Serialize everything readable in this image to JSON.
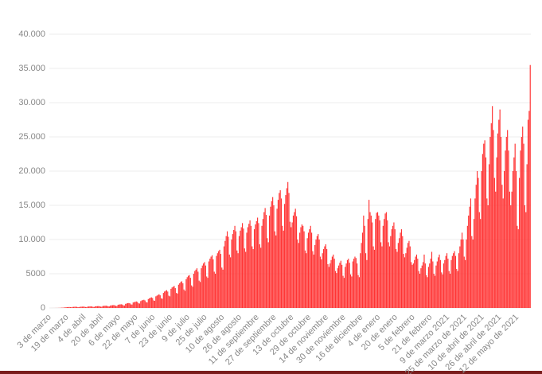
{
  "chart_data": {
    "type": "bar",
    "color": "#ff3333",
    "grid": true,
    "ylim": [
      0,
      40000
    ],
    "yticks": [
      0,
      5000,
      {
        "value": 10000,
        "label": "10.000"
      },
      {
        "value": 15000,
        "label": "15.000"
      },
      {
        "value": 20000,
        "label": "20.000"
      },
      {
        "value": 25000,
        "label": "25.000"
      },
      {
        "value": 30000,
        "label": "30.000"
      },
      {
        "value": 35000,
        "label": "35.000"
      },
      {
        "value": 40000,
        "label": "40.000"
      }
    ],
    "categories": [
      "3 de marzo",
      null,
      null,
      null,
      null,
      null,
      null,
      null,
      null,
      null,
      null,
      null,
      null,
      null,
      null,
      null,
      "19 de marzo",
      null,
      null,
      null,
      null,
      null,
      null,
      null,
      null,
      null,
      null,
      null,
      null,
      null,
      null,
      null,
      "4 de abril",
      null,
      null,
      null,
      null,
      null,
      null,
      null,
      null,
      null,
      null,
      null,
      null,
      null,
      null,
      null,
      "20 de abril",
      null,
      null,
      null,
      null,
      null,
      null,
      null,
      null,
      null,
      null,
      null,
      null,
      null,
      null,
      null,
      "6 de mayo",
      null,
      null,
      null,
      null,
      null,
      null,
      null,
      null,
      null,
      null,
      null,
      null,
      null,
      null,
      null,
      "22 de mayo",
      null,
      null,
      null,
      null,
      null,
      null,
      null,
      null,
      null,
      null,
      null,
      null,
      null,
      null,
      null,
      "7 de junio",
      null,
      null,
      null,
      null,
      null,
      null,
      null,
      null,
      null,
      null,
      null,
      null,
      null,
      null,
      null,
      "23 de junio",
      null,
      null,
      null,
      null,
      null,
      null,
      null,
      null,
      null,
      null,
      null,
      null,
      null,
      null,
      null,
      "9 de julio",
      null,
      null,
      null,
      null,
      null,
      null,
      null,
      null,
      null,
      null,
      null,
      null,
      null,
      null,
      null,
      "25 de julio",
      null,
      null,
      null,
      null,
      null,
      null,
      null,
      null,
      null,
      null,
      null,
      null,
      null,
      null,
      null,
      "10 de agosto",
      null,
      null,
      null,
      null,
      null,
      null,
      null,
      null,
      null,
      null,
      null,
      null,
      null,
      null,
      null,
      "26 de agosto",
      null,
      null,
      null,
      null,
      null,
      null,
      null,
      null,
      null,
      null,
      null,
      null,
      null,
      null,
      null,
      "11 de septiembre",
      null,
      null,
      null,
      null,
      null,
      null,
      null,
      null,
      null,
      null,
      null,
      null,
      null,
      null,
      null,
      "27 de septiembre",
      null,
      null,
      null,
      null,
      null,
      null,
      null,
      null,
      null,
      null,
      null,
      null,
      null,
      null,
      null,
      "13 de octubre",
      null,
      null,
      null,
      null,
      null,
      null,
      null,
      null,
      null,
      null,
      null,
      null,
      null,
      null,
      null,
      "29 de octubre",
      null,
      null,
      null,
      null,
      null,
      null,
      null,
      null,
      null,
      null,
      null,
      null,
      null,
      null,
      null,
      "14 de noviembre",
      null,
      null,
      null,
      null,
      null,
      null,
      null,
      null,
      null,
      null,
      null,
      null,
      null,
      null,
      null,
      "30 de noviembre",
      null,
      null,
      null,
      null,
      null,
      null,
      null,
      null,
      null,
      null,
      null,
      null,
      null,
      null,
      null,
      "16 de diciembre",
      null,
      null,
      null,
      null,
      null,
      null,
      null,
      null,
      null,
      null,
      null,
      null,
      null,
      null,
      null,
      "4 de enero",
      null,
      null,
      null,
      null,
      null,
      null,
      null,
      null,
      null,
      null,
      null,
      null,
      null,
      null,
      null,
      "20 de enero",
      null,
      null,
      null,
      null,
      null,
      null,
      null,
      null,
      null,
      null,
      null,
      null,
      null,
      null,
      null,
      "5 de febrero",
      null,
      null,
      null,
      null,
      null,
      null,
      null,
      null,
      null,
      null,
      null,
      null,
      null,
      null,
      null,
      "21 de febrero",
      null,
      null,
      null,
      null,
      null,
      null,
      null,
      null,
      null,
      null,
      null,
      null,
      null,
      null,
      null,
      "9 de marzo 2021",
      null,
      null,
      null,
      null,
      null,
      null,
      null,
      null,
      null,
      null,
      null,
      null,
      null,
      null,
      null,
      "25 de marzo de 2021",
      null,
      null,
      null,
      null,
      null,
      null,
      null,
      null,
      null,
      null,
      null,
      null,
      null,
      null,
      null,
      "10 de abril de 2021",
      null,
      null,
      null,
      null,
      null,
      null,
      null,
      null,
      null,
      null,
      null,
      null,
      null,
      null,
      null,
      "26 de abril de 2021",
      null,
      null,
      null,
      null,
      null,
      null,
      null,
      null,
      null,
      null,
      null,
      null,
      null,
      null,
      null,
      "12 de mayo de 2021",
      null,
      null,
      null,
      null,
      null,
      null,
      null,
      null,
      null,
      null,
      null,
      null
    ],
    "values": [
      0,
      1,
      1,
      2,
      3,
      5,
      8,
      10,
      15,
      20,
      30,
      40,
      50,
      60,
      80,
      100,
      120,
      130,
      140,
      120,
      100,
      150,
      160,
      170,
      180,
      160,
      120,
      110,
      170,
      180,
      190,
      200,
      180,
      140,
      130,
      200,
      210,
      220,
      230,
      210,
      160,
      150,
      240,
      250,
      260,
      270,
      250,
      190,
      180,
      290,
      300,
      320,
      330,
      300,
      230,
      220,
      350,
      380,
      400,
      420,
      390,
      300,
      280,
      460,
      500,
      520,
      540,
      500,
      380,
      360,
      600,
      650,
      700,
      720,
      680,
      520,
      500,
      800,
      850,
      900,
      950,
      880,
      680,
      650,
      1000,
      1100,
      1150,
      1200,
      1100,
      850,
      800,
      1300,
      1400,
      1500,
      1550,
      1450,
      1100,
      1050,
      1700,
      1800,
      1900,
      2000,
      1850,
      1400,
      1350,
      2200,
      2400,
      2500,
      2600,
      2400,
      1800,
      1700,
      2800,
      3000,
      3100,
      3200,
      2900,
      2200,
      2100,
      3400,
      3600,
      3800,
      3900,
      3600,
      2700,
      2500,
      4200,
      4500,
      4700,
      4800,
      4400,
      3300,
      3100,
      5000,
      5400,
      5600,
      5800,
      5300,
      4000,
      3800,
      5800,
      6200,
      6500,
      6700,
      6200,
      4600,
      4400,
      6800,
      7200,
      7500,
      7700,
      7100,
      5300,
      5000,
      7600,
      8000,
      8300,
      8500,
      7900,
      5900,
      5600,
      9000,
      9800,
      10500,
      11200,
      10400,
      7800,
      7400,
      10000,
      10800,
      11400,
      12000,
      11200,
      8400,
      8000,
      10500,
      11300,
      11800,
      12400,
      11600,
      8700,
      8200,
      11000,
      11800,
      12300,
      12800,
      12000,
      9000,
      8600,
      11500,
      12200,
      12700,
      13200,
      12400,
      9300,
      8800,
      12000,
      13000,
      14000,
      14600,
      13600,
      10200,
      9600,
      13500,
      14800,
      15600,
      16200,
      15000,
      11200,
      10600,
      14500,
      15800,
      16800,
      17200,
      16000,
      12000,
      11300,
      15200,
      16500,
      17500,
      18400,
      16800,
      12600,
      11800,
      12500,
      13500,
      14000,
      14500,
      13400,
      10000,
      9500,
      11000,
      11800,
      12200,
      12000,
      11200,
      8400,
      8000,
      10200,
      11000,
      11500,
      12000,
      11000,
      8300,
      7800,
      9200,
      10000,
      10500,
      10800,
      10000,
      7500,
      7100,
      8000,
      8600,
      9000,
      9300,
      8600,
      6400,
      6000,
      6500,
      7000,
      7500,
      7800,
      7200,
      5400,
      5100,
      5800,
      6200,
      6600,
      6900,
      6300,
      4700,
      4400,
      6000,
      6500,
      7000,
      7200,
      6600,
      4900,
      4600,
      6800,
      7200,
      7500,
      7300,
      6500,
      4800,
      4500,
      8000,
      9500,
      11000,
      13500,
      12000,
      8000,
      7000,
      13000,
      15800,
      14000,
      13500,
      12500,
      9000,
      8500,
      13000,
      13900,
      14000,
      13500,
      12800,
      9600,
      9000,
      12000,
      13000,
      13800,
      14000,
      12800,
      9600,
      9000,
      10500,
      11500,
      12000,
      12500,
      11500,
      8600,
      8200,
      9500,
      10200,
      11000,
      11500,
      10500,
      7900,
      7400,
      8000,
      8800,
      9500,
      9800,
      9000,
      6700,
      6300,
      6500,
      7000,
      7500,
      7800,
      7200,
      5400,
      5000,
      5800,
      6200,
      6700,
      7800,
      6500,
      4800,
      4500,
      6000,
      6500,
      7200,
      8200,
      6800,
      5000,
      4700,
      6200,
      6800,
      7400,
      7800,
      7000,
      5200,
      4900,
      6500,
      7000,
      7600,
      8000,
      7200,
      5400,
      5000,
      7000,
      7600,
      8000,
      8300,
      7600,
      5700,
      5400,
      8000,
      9000,
      10000,
      11000,
      10000,
      7500,
      7000,
      10000,
      12000,
      13500,
      14800,
      16000,
      10500,
      10000,
      13000,
      16000,
      18000,
      20000,
      19000,
      14000,
      13000,
      20000,
      22500,
      24000,
      24500,
      22000,
      16000,
      15000,
      21000,
      25000,
      27000,
      29500,
      26000,
      19000,
      17000,
      22000,
      25500,
      27500,
      29000,
      25000,
      18000,
      16000,
      20000,
      23000,
      25000,
      26000,
      23000,
      17000,
      15000,
      17000,
      20000,
      22000,
      24000,
      20000,
      12000,
      11500,
      19000,
      23000,
      25000,
      26500,
      24000,
      15000,
      14000,
      21000,
      27500,
      28800,
      35500
    ]
  }
}
